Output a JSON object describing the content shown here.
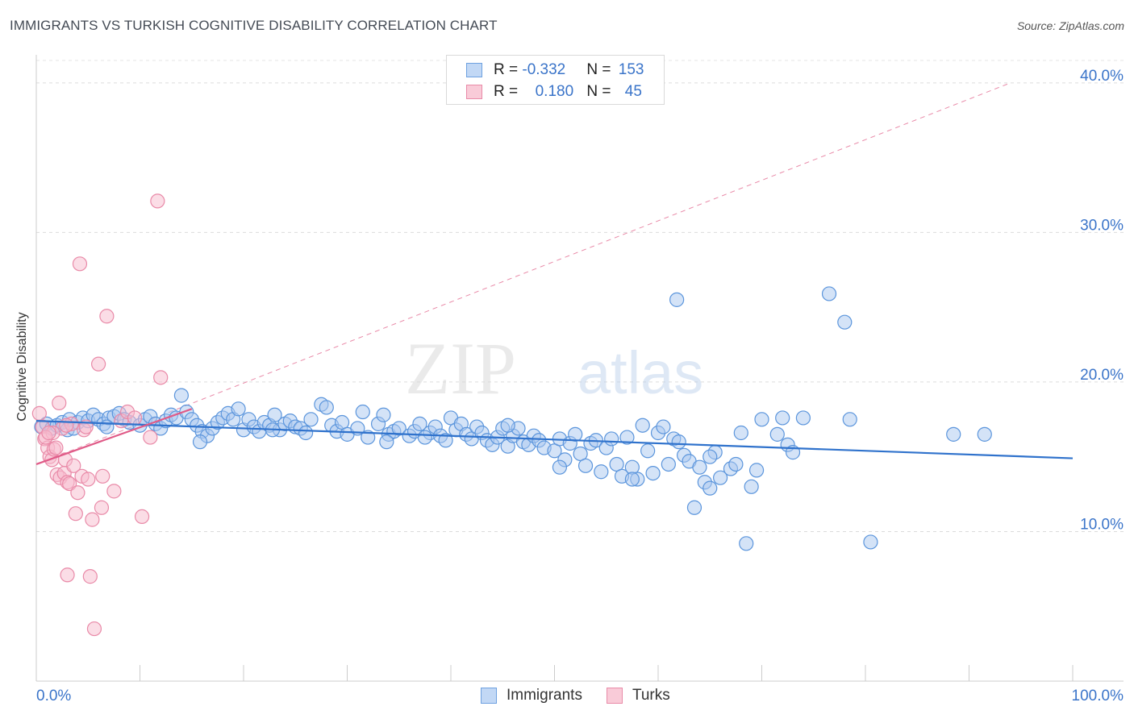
{
  "header": {
    "title": "IMMIGRANTS VS TURKISH COGNITIVE DISABILITY CORRELATION CHART",
    "source": "Source: ZipAtlas.com"
  },
  "watermark": {
    "zip": "ZIP",
    "atlas": "atlas"
  },
  "legend": {
    "rows": [
      {
        "r_label": "R = ",
        "r_value": "-0.332",
        "n_label": "N = ",
        "n_value": "153",
        "color": "#a9c8f0",
        "border": "#6ea1e0"
      },
      {
        "r_label": "R = ",
        "r_value": "0.180",
        "n_label": "N = ",
        "n_value": "45",
        "color": "#f7bccd",
        "border": "#e98aa8"
      }
    ],
    "series": [
      "Immigrants",
      "Turks"
    ]
  },
  "chart_data": {
    "type": "scatter",
    "title": "IMMIGRANTS VS TURKISH COGNITIVE DISABILITY CORRELATION CHART",
    "xlabel": "",
    "ylabel": "Cognitive Disability",
    "xlim": [
      0,
      100
    ],
    "ylim": [
      0,
      41.5
    ],
    "x_tick_labels": [
      "0.0%",
      "100.0%"
    ],
    "y_ticks": [
      10,
      20,
      30,
      40
    ],
    "y_tick_labels": [
      "10.0%",
      "20.0%",
      "30.0%",
      "40.0%"
    ],
    "grid": true,
    "series": [
      {
        "name": "Immigrants",
        "color": "#5b95dc",
        "fill": "#a9c8f0",
        "trend": {
          "x": [
            0,
            100
          ],
          "y": [
            17.4,
            14.9
          ],
          "color": "#2f72cc"
        },
        "points": [
          [
            0.5,
            17.0
          ],
          [
            1.0,
            17.2
          ],
          [
            1.5,
            16.9
          ],
          [
            2.0,
            17.1
          ],
          [
            2.5,
            17.3
          ],
          [
            3.0,
            16.8
          ],
          [
            3.2,
            17.5
          ],
          [
            4.0,
            17.3
          ],
          [
            4.5,
            17.6
          ],
          [
            5.0,
            17.4
          ],
          [
            5.5,
            17.8
          ],
          [
            6.0,
            17.5
          ],
          [
            6.5,
            17.2
          ],
          [
            7.0,
            17.6
          ],
          [
            7.5,
            17.7
          ],
          [
            8.0,
            17.9
          ],
          [
            8.5,
            17.5
          ],
          [
            9.0,
            17.3
          ],
          [
            10.0,
            17.1
          ],
          [
            10.5,
            17.5
          ],
          [
            11.0,
            17.7
          ],
          [
            11.5,
            17.2
          ],
          [
            12.0,
            16.9
          ],
          [
            12.5,
            17.4
          ],
          [
            13.0,
            17.8
          ],
          [
            13.5,
            17.6
          ],
          [
            14.0,
            19.1
          ],
          [
            14.5,
            18.0
          ],
          [
            15.0,
            17.5
          ],
          [
            15.5,
            17.1
          ],
          [
            16.0,
            16.7
          ],
          [
            16.5,
            16.4
          ],
          [
            17.0,
            16.9
          ],
          [
            17.5,
            17.3
          ],
          [
            18.0,
            17.6
          ],
          [
            18.5,
            17.9
          ],
          [
            19.0,
            17.5
          ],
          [
            19.5,
            18.2
          ],
          [
            20.0,
            16.8
          ],
          [
            20.5,
            17.5
          ],
          [
            21.0,
            17.0
          ],
          [
            21.5,
            16.7
          ],
          [
            22.0,
            17.3
          ],
          [
            22.5,
            17.1
          ],
          [
            23.0,
            17.8
          ],
          [
            23.5,
            16.8
          ],
          [
            24.0,
            17.2
          ],
          [
            24.5,
            17.4
          ],
          [
            25.0,
            17.0
          ],
          [
            25.5,
            16.9
          ],
          [
            26.5,
            17.5
          ],
          [
            27.5,
            18.5
          ],
          [
            28.0,
            18.3
          ],
          [
            28.5,
            17.1
          ],
          [
            29.0,
            16.7
          ],
          [
            29.5,
            17.3
          ],
          [
            30.0,
            16.5
          ],
          [
            31.0,
            16.9
          ],
          [
            31.5,
            18.0
          ],
          [
            32.0,
            16.3
          ],
          [
            33.0,
            17.2
          ],
          [
            33.5,
            17.8
          ],
          [
            34.0,
            16.5
          ],
          [
            34.5,
            16.7
          ],
          [
            35.0,
            16.9
          ],
          [
            36.0,
            16.4
          ],
          [
            36.5,
            16.7
          ],
          [
            37.0,
            17.2
          ],
          [
            38.0,
            16.6
          ],
          [
            38.5,
            17.0
          ],
          [
            39.0,
            16.4
          ],
          [
            39.5,
            16.1
          ],
          [
            40.0,
            17.6
          ],
          [
            40.5,
            16.8
          ],
          [
            41.0,
            17.2
          ],
          [
            41.5,
            16.5
          ],
          [
            42.0,
            16.2
          ],
          [
            42.5,
            17.0
          ],
          [
            43.0,
            16.6
          ],
          [
            43.5,
            16.1
          ],
          [
            44.0,
            15.8
          ],
          [
            44.5,
            16.3
          ],
          [
            45.0,
            16.9
          ],
          [
            45.5,
            15.7
          ],
          [
            46.0,
            16.4
          ],
          [
            46.5,
            16.9
          ],
          [
            47.0,
            16.0
          ],
          [
            47.5,
            15.8
          ],
          [
            48.0,
            16.4
          ],
          [
            48.5,
            16.1
          ],
          [
            49.0,
            15.6
          ],
          [
            50.0,
            15.4
          ],
          [
            50.5,
            16.2
          ],
          [
            51.0,
            14.8
          ],
          [
            51.5,
            15.9
          ],
          [
            52.0,
            16.5
          ],
          [
            52.5,
            15.2
          ],
          [
            53.0,
            14.4
          ],
          [
            53.5,
            15.9
          ],
          [
            54.0,
            16.1
          ],
          [
            54.5,
            14.0
          ],
          [
            55.0,
            15.6
          ],
          [
            55.5,
            16.2
          ],
          [
            56.0,
            14.5
          ],
          [
            56.5,
            13.7
          ],
          [
            57.0,
            16.3
          ],
          [
            57.5,
            14.3
          ],
          [
            58.0,
            13.5
          ],
          [
            58.5,
            17.1
          ],
          [
            59.0,
            15.4
          ],
          [
            59.5,
            13.9
          ],
          [
            60.0,
            16.6
          ],
          [
            60.5,
            17.0
          ],
          [
            61.0,
            14.5
          ],
          [
            61.5,
            16.2
          ],
          [
            62.0,
            16.0
          ],
          [
            62.5,
            15.1
          ],
          [
            63.0,
            14.7
          ],
          [
            63.5,
            11.6
          ],
          [
            64.0,
            14.3
          ],
          [
            64.5,
            13.3
          ],
          [
            65.0,
            12.9
          ],
          [
            65.5,
            15.3
          ],
          [
            66.0,
            13.6
          ],
          [
            67.0,
            14.2
          ],
          [
            67.5,
            14.5
          ],
          [
            68.0,
            16.6
          ],
          [
            68.5,
            9.2
          ],
          [
            69.0,
            13.0
          ],
          [
            69.5,
            14.1
          ],
          [
            70.0,
            17.5
          ],
          [
            71.5,
            16.5
          ],
          [
            72.0,
            17.6
          ],
          [
            72.5,
            15.8
          ],
          [
            73.0,
            15.3
          ],
          [
            74.0,
            17.6
          ],
          [
            76.5,
            25.9
          ],
          [
            78.0,
            24.0
          ],
          [
            78.5,
            17.5
          ],
          [
            80.5,
            9.3
          ],
          [
            88.5,
            16.5
          ],
          [
            91.5,
            16.5
          ],
          [
            57.5,
            13.5
          ],
          [
            61.8,
            25.5
          ],
          [
            65.0,
            15.0
          ],
          [
            50.5,
            14.3
          ],
          [
            45.5,
            17.1
          ],
          [
            33.8,
            16.0
          ],
          [
            22.8,
            16.8
          ],
          [
            37.5,
            16.3
          ],
          [
            26.0,
            16.6
          ],
          [
            15.8,
            16.0
          ],
          [
            3.6,
            16.9
          ],
          [
            6.8,
            17.0
          ]
        ]
      },
      {
        "name": "Turks",
        "color": "#e98aa8",
        "fill": "#f7bccd",
        "trend": {
          "x": [
            0,
            15
          ],
          "y": [
            14.5,
            18.2
          ],
          "color": "#e05b88"
        },
        "trend_ext": {
          "x": [
            0,
            94
          ],
          "y": [
            14.5,
            40.0
          ]
        },
        "points": [
          [
            0.3,
            17.9
          ],
          [
            0.6,
            17.0
          ],
          [
            0.8,
            16.2
          ],
          [
            1.1,
            15.6
          ],
          [
            1.3,
            15.0
          ],
          [
            1.5,
            14.8
          ],
          [
            1.7,
            15.5
          ],
          [
            1.9,
            15.6
          ],
          [
            2.0,
            13.8
          ],
          [
            2.2,
            18.6
          ],
          [
            2.3,
            13.6
          ],
          [
            2.5,
            16.9
          ],
          [
            2.7,
            13.9
          ],
          [
            2.8,
            14.8
          ],
          [
            3.0,
            13.3
          ],
          [
            3.2,
            13.2
          ],
          [
            3.4,
            17.2
          ],
          [
            3.6,
            14.4
          ],
          [
            3.8,
            11.2
          ],
          [
            4.0,
            12.6
          ],
          [
            4.2,
            27.9
          ],
          [
            4.4,
            13.7
          ],
          [
            4.6,
            16.8
          ],
          [
            5.0,
            13.5
          ],
          [
            5.2,
            7.0
          ],
          [
            5.4,
            10.8
          ],
          [
            5.6,
            3.5
          ],
          [
            6.0,
            21.2
          ],
          [
            6.3,
            11.6
          ],
          [
            6.8,
            24.4
          ],
          [
            7.5,
            12.7
          ],
          [
            8.2,
            17.4
          ],
          [
            8.8,
            18.0
          ],
          [
            9.5,
            17.6
          ],
          [
            10.2,
            11.0
          ],
          [
            11.0,
            16.3
          ],
          [
            11.7,
            32.1
          ],
          [
            12.0,
            20.3
          ],
          [
            3.0,
            7.1
          ],
          [
            1.6,
            16.6
          ],
          [
            2.9,
            17.1
          ],
          [
            0.9,
            16.3
          ],
          [
            1.2,
            16.6
          ],
          [
            6.4,
            13.7
          ],
          [
            4.8,
            17.0
          ]
        ]
      }
    ]
  }
}
